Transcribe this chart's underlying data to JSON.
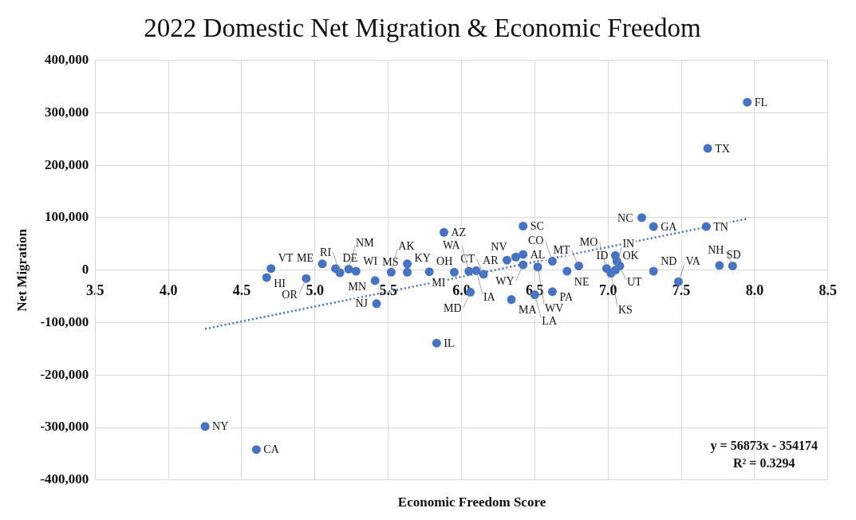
{
  "chart_data": {
    "type": "scatter",
    "title": "2022 Domestic Net Migration & Economic Freedom",
    "xlabel": "Economic Freedom Score",
    "ylabel": "Net Migration",
    "xlim": [
      3.5,
      8.5
    ],
    "xticks": [
      3.5,
      {
        "value": 4,
        "label": "4.0"
      },
      4.5,
      {
        "value": 5,
        "label": "5.0"
      },
      5.5,
      {
        "value": 6,
        "label": "6.0"
      },
      6.5,
      {
        "value": 7,
        "label": "7.0"
      },
      7.5,
      {
        "value": 8,
        "label": "8.0"
      },
      8.5
    ],
    "ylim": [
      -400000,
      400000
    ],
    "yticks": [
      {
        "value": -400000,
        "label": "-400,000"
      },
      {
        "value": -300000,
        "label": "-300,000"
      },
      {
        "value": -200000,
        "label": "-200,000"
      },
      {
        "value": -100000,
        "label": "-100,000"
      },
      {
        "value": 0,
        "label": "0"
      },
      {
        "value": 100000,
        "label": "100,000"
      },
      {
        "value": 200000,
        "label": "200,000"
      },
      {
        "value": 300000,
        "label": "300,000"
      },
      {
        "value": 400000,
        "label": "400,000"
      }
    ],
    "grid": true,
    "legend": false,
    "marker": "circle",
    "series": [
      {
        "type": "scatter",
        "color": "#4472c4",
        "x": [
          7.95,
          7.68,
          7.23,
          7.31,
          7.67,
          6.42,
          5.88,
          7.05,
          7.06,
          7.08,
          7.05,
          6.99,
          7.02,
          7.31,
          7.48,
          7.76,
          7.85,
          6.8,
          6.72,
          6.62,
          6.52,
          6.42,
          6.42,
          6.31,
          6.37,
          6.15,
          5.95,
          6.05,
          6.1,
          5.78,
          5.63,
          5.52,
          5.41,
          5.42,
          6.06,
          6.34,
          6.5,
          6.62,
          5.83,
          4.25,
          4.6,
          4.67,
          4.7,
          4.94,
          5.05,
          5.14,
          5.17,
          5.23,
          5.63,
          5.28
        ],
        "values": [
          320000,
          232000,
          100000,
          83000,
          83000,
          84000,
          72000,
          28000,
          17000,
          8000,
          0,
          3000,
          -6000,
          -2000,
          -22000,
          9000,
          8000,
          8000,
          -2000,
          17000,
          6000,
          10000,
          30000,
          19000,
          25000,
          -8000,
          -4000,
          -2000,
          -1000,
          -3000,
          -4000,
          -4000,
          -20000,
          -64000,
          -42000,
          -56000,
          -47000,
          -41000,
          -139000,
          -298000,
          -342000,
          -14000,
          3000,
          -16000,
          12000,
          3000,
          -5000,
          2000,
          12000,
          -2000
        ]
      },
      {
        "type": "line",
        "color": "#4472c4",
        "x": [
          4.25,
          7.95
        ],
        "values": [
          -112000,
          98000
        ],
        "line_style": "dotted",
        "marker": "none"
      }
    ],
    "annotations": [
      {
        "text": "FL",
        "x": 7.95,
        "y": 320000
      },
      {
        "text": "TX",
        "x": 7.68,
        "y": 232000
      },
      {
        "text": "NC",
        "x": 7.23,
        "y": 100000
      },
      {
        "text": "GA",
        "x": 7.31,
        "y": 83000
      },
      {
        "text": "TN",
        "x": 7.67,
        "y": 83000
      },
      {
        "text": "SC",
        "x": 6.42,
        "y": 84000
      },
      {
        "text": "AZ",
        "x": 5.88,
        "y": 72000
      },
      {
        "text": "OK",
        "x": 7.05,
        "y": 28000
      },
      {
        "text": "ID",
        "x": 7.06,
        "y": 17000
      },
      {
        "text": "UT",
        "x": 7.08,
        "y": 8000
      },
      {
        "text": "IN",
        "x": 7.05,
        "y": 0
      },
      {
        "text": "MO",
        "x": 6.99,
        "y": 3000
      },
      {
        "text": "KS",
        "x": 7.02,
        "y": -6000
      },
      {
        "text": "ND",
        "x": 7.31,
        "y": -2000
      },
      {
        "text": "VA",
        "x": 7.48,
        "y": -22000
      },
      {
        "text": "SD",
        "x": 7.76,
        "y": 9000
      },
      {
        "text": "NH",
        "x": 7.85,
        "y": 8000
      },
      {
        "text": "MT",
        "x": 6.8,
        "y": 8000
      },
      {
        "text": "NE",
        "x": 6.72,
        "y": -2000
      },
      {
        "text": "CO",
        "x": 6.62,
        "y": 17000
      },
      {
        "text": "WV",
        "x": 6.52,
        "y": 6000
      },
      {
        "text": "WY",
        "x": 6.42,
        "y": 10000
      },
      {
        "text": "AL",
        "x": 6.42,
        "y": 30000
      },
      {
        "text": "AR",
        "x": 6.31,
        "y": 19000
      },
      {
        "text": "NV",
        "x": 6.37,
        "y": 25000
      },
      {
        "text": "CT",
        "x": 6.15,
        "y": -8000
      },
      {
        "text": "MI",
        "x": 5.95,
        "y": -4000
      },
      {
        "text": "WA",
        "x": 6.05,
        "y": -2000
      },
      {
        "text": "IA",
        "x": 6.1,
        "y": -1000
      },
      {
        "text": "OH",
        "x": 5.78,
        "y": -3000
      },
      {
        "text": "MS",
        "x": 5.63,
        "y": -4000
      },
      {
        "text": "AK",
        "x": 5.52,
        "y": -4000
      },
      {
        "text": "MN",
        "x": 5.41,
        "y": -20000
      },
      {
        "text": "NJ",
        "x": 5.42,
        "y": -64000
      },
      {
        "text": "MD",
        "x": 6.06,
        "y": -42000
      },
      {
        "text": "MA",
        "x": 6.34,
        "y": -56000
      },
      {
        "text": "LA",
        "x": 6.5,
        "y": -47000
      },
      {
        "text": "PA",
        "x": 6.62,
        "y": -41000
      },
      {
        "text": "IL",
        "x": 5.83,
        "y": -139000
      },
      {
        "text": "NY",
        "x": 4.25,
        "y": -298000
      },
      {
        "text": "CA",
        "x": 4.6,
        "y": -342000
      },
      {
        "text": "HI",
        "x": 4.67,
        "y": -14000
      },
      {
        "text": "VT",
        "x": 4.7,
        "y": 3000
      },
      {
        "text": "OR",
        "x": 4.94,
        "y": -16000
      },
      {
        "text": "ME",
        "x": 5.05,
        "y": 12000
      },
      {
        "text": "DE",
        "x": 5.14,
        "y": 3000
      },
      {
        "text": "RI",
        "x": 5.17,
        "y": -5000
      },
      {
        "text": "NM",
        "x": 5.23,
        "y": 2000
      },
      {
        "text": "KY",
        "x": 5.63,
        "y": 12000
      },
      {
        "text": "WI",
        "x": 5.28,
        "y": -2000
      },
      "y = 56873x - 354174",
      "R² = 0.3294"
    ]
  }
}
